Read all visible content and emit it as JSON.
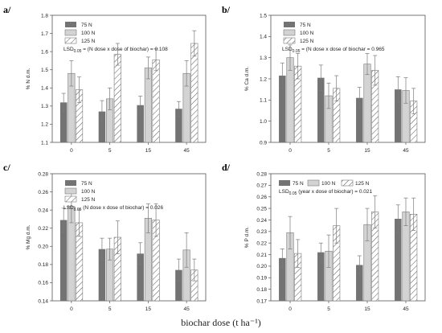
{
  "figure": {
    "xlabel": "biochar dose (t ha⁻¹)"
  },
  "chart_data": [
    {
      "panel": "a/",
      "type": "bar",
      "ylabel": "% N d.m.",
      "ylim": [
        1.1,
        1.8
      ],
      "yticks": [
        "1.1",
        "1.2",
        "1.3",
        "1.4",
        "1.5",
        "1.6",
        "1.7",
        "1.8"
      ],
      "categories": [
        "0",
        "5",
        "15",
        "45"
      ],
      "series": [
        {
          "name": "75 N",
          "values": [
            1.32,
            1.27,
            1.305,
            1.285
          ],
          "err": [
            0.05,
            0.06,
            0.05,
            0.04
          ]
        },
        {
          "name": "100 N",
          "values": [
            1.48,
            1.34,
            1.51,
            1.48
          ],
          "err": [
            0.07,
            0.06,
            0.06,
            0.07
          ]
        },
        {
          "name": "125 N",
          "values": [
            1.39,
            1.585,
            1.555,
            1.645
          ],
          "err": [
            0.07,
            0.06,
            0.06,
            0.07
          ]
        }
      ],
      "lsd": {
        "prefix": "LSD",
        "sub": "0.05",
        "text": " = (N dose x dose of biochar) = 0.108"
      }
    },
    {
      "panel": "b/",
      "type": "bar",
      "ylabel": "% Ca d.m.",
      "ylim": [
        0.9,
        1.5
      ],
      "yticks": [
        "0.9",
        "1.0",
        "1.1",
        "1.2",
        "1.3",
        "1.4",
        "1.5"
      ],
      "categories": [
        "0",
        "5",
        "15",
        "45"
      ],
      "series": [
        {
          "name": "75 N",
          "values": [
            1.215,
            1.205,
            1.11,
            1.15
          ],
          "err": [
            0.06,
            0.06,
            0.05,
            0.06
          ]
        },
        {
          "name": "100 N",
          "values": [
            1.3,
            1.12,
            1.27,
            1.145
          ],
          "err": [
            0.06,
            0.06,
            0.05,
            0.06
          ]
        },
        {
          "name": "125 N",
          "values": [
            1.26,
            1.155,
            1.24,
            1.095
          ],
          "err": [
            0.06,
            0.06,
            0.07,
            0.06
          ]
        }
      ],
      "lsd": {
        "prefix": "LSD",
        "sub": "0.05",
        "text": " = (N dose x dose of biochar = 0.965"
      }
    },
    {
      "panel": "c/",
      "type": "bar",
      "ylabel": "% Mg d.m.",
      "ylim": [
        0.14,
        0.28
      ],
      "yticks": [
        "0.14",
        "0.16",
        "0.18",
        "0.20",
        "0.22",
        "0.24",
        "0.26",
        "0.28"
      ],
      "categories": [
        "0",
        "5",
        "15",
        "45"
      ],
      "series": [
        {
          "name": "75 N",
          "values": [
            0.229,
            0.197,
            0.192,
            0.174
          ],
          "err": [
            0.013,
            0.012,
            0.012,
            0.012
          ]
        },
        {
          "name": "100 N",
          "values": [
            0.244,
            0.197,
            0.231,
            0.196
          ],
          "err": [
            0.018,
            0.012,
            0.016,
            0.019
          ]
        },
        {
          "name": "125 N",
          "values": [
            0.226,
            0.21,
            0.229,
            0.174
          ],
          "err": [
            0.015,
            0.018,
            0.018,
            0.012
          ]
        }
      ],
      "lsd": {
        "prefix": "LSD",
        "sub": "0.05",
        "text": " (N dose x dose of biochar) = 0.026"
      }
    },
    {
      "panel": "d/",
      "type": "bar",
      "ylabel": "% P d.m.",
      "ylim": [
        0.17,
        0.28
      ],
      "yticks": [
        "0.17",
        "0.18",
        "0.19",
        "0.20",
        "0.21",
        "0.22",
        "0.23",
        "0.24",
        "0.25",
        "0.26",
        "0.27",
        "0.28"
      ],
      "categories": [
        "0",
        "5",
        "15",
        "45"
      ],
      "series": [
        {
          "name": "75 N",
          "values": [
            0.207,
            0.212,
            0.201,
            0.241
          ],
          "err": [
            0.008,
            0.008,
            0.008,
            0.012
          ]
        },
        {
          "name": "100 N",
          "values": [
            0.229,
            0.213,
            0.236,
            0.247
          ],
          "err": [
            0.014,
            0.014,
            0.014,
            0.012
          ]
        },
        {
          "name": "125 N",
          "values": [
            0.211,
            0.235,
            0.247,
            0.245
          ],
          "err": [
            0.012,
            0.015,
            0.014,
            0.014
          ]
        }
      ],
      "lsd": {
        "prefix": "LSD",
        "sub": "0.05",
        "text": " (year x dose of biochar) = 0.021"
      }
    }
  ],
  "colors": {
    "series1": "#737373",
    "series2": "#d3d3d3",
    "series3": "#ffffff",
    "axis": "#555555",
    "error": "#7a7a7a",
    "hatch": "#444444"
  }
}
